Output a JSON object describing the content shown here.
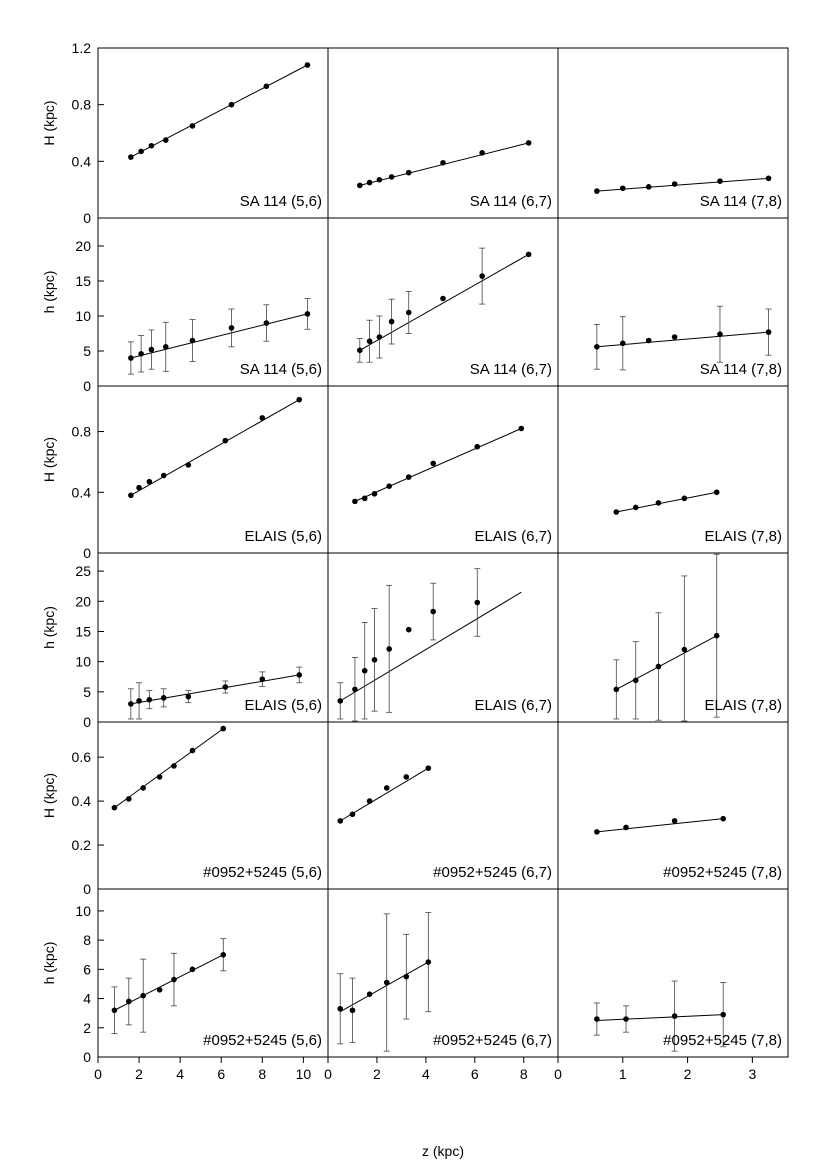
{
  "xlabel": "z (kpc)",
  "chart_data": [
    {
      "type": "scatter",
      "label": "SA 114 (5,6)",
      "ylabel": "H (kpc)",
      "xlim": [
        0,
        11.2
      ],
      "ylim": [
        0,
        1.2
      ],
      "xticks": [],
      "yticks": [
        0,
        0.4,
        0.8,
        1.2
      ],
      "points": [
        [
          1.6,
          0.43
        ],
        [
          2.1,
          0.47
        ],
        [
          2.6,
          0.51
        ],
        [
          3.3,
          0.55
        ],
        [
          4.6,
          0.65
        ],
        [
          6.5,
          0.8
        ],
        [
          8.2,
          0.93
        ],
        [
          10.2,
          1.08
        ]
      ],
      "line": [
        [
          1.6,
          0.43
        ],
        [
          10.2,
          1.08
        ]
      ]
    },
    {
      "type": "scatter",
      "label": "SA 114 (6,7)",
      "ylabel": "",
      "xlim": [
        0,
        9.4
      ],
      "ylim": [
        0,
        1.2
      ],
      "xticks": [],
      "yticks": [],
      "points": [
        [
          1.3,
          0.23
        ],
        [
          1.7,
          0.25
        ],
        [
          2.1,
          0.27
        ],
        [
          2.6,
          0.29
        ],
        [
          3.3,
          0.32
        ],
        [
          4.7,
          0.39
        ],
        [
          6.3,
          0.46
        ],
        [
          8.2,
          0.53
        ]
      ],
      "line": [
        [
          1.3,
          0.23
        ],
        [
          8.2,
          0.53
        ]
      ]
    },
    {
      "type": "scatter",
      "label": "SA 114 (7,8)",
      "ylabel": "",
      "xlim": [
        0,
        3.55
      ],
      "ylim": [
        0,
        1.2
      ],
      "xticks": [],
      "yticks": [],
      "points": [
        [
          0.6,
          0.19
        ],
        [
          1.0,
          0.21
        ],
        [
          1.4,
          0.22
        ],
        [
          1.8,
          0.24
        ],
        [
          2.5,
          0.26
        ],
        [
          3.25,
          0.28
        ]
      ],
      "line": [
        [
          0.6,
          0.19
        ],
        [
          3.25,
          0.28
        ]
      ]
    },
    {
      "type": "scatter",
      "label": "SA 114 (5,6)",
      "ylabel": "h (kpc)",
      "xlim": [
        0,
        11.2
      ],
      "ylim": [
        0,
        24
      ],
      "xticks": [],
      "yticks": [
        0,
        5,
        10,
        15,
        20
      ],
      "points": [
        [
          1.6,
          4.0,
          2.3
        ],
        [
          2.1,
          4.6,
          2.6
        ],
        [
          2.6,
          5.2,
          2.8
        ],
        [
          3.3,
          5.6,
          3.5
        ],
        [
          4.6,
          6.5,
          3.0
        ],
        [
          6.5,
          8.3,
          2.7
        ],
        [
          8.2,
          9.0,
          2.6
        ],
        [
          10.2,
          10.3,
          2.2
        ]
      ],
      "line": [
        [
          1.6,
          4.0
        ],
        [
          10.2,
          10.3
        ]
      ]
    },
    {
      "type": "scatter",
      "label": "SA 114 (6,7)",
      "ylabel": "",
      "xlim": [
        0,
        9.4
      ],
      "ylim": [
        0,
        24
      ],
      "xticks": [],
      "yticks": [],
      "points": [
        [
          1.3,
          5.1,
          1.7
        ],
        [
          1.7,
          6.4,
          3.0
        ],
        [
          2.1,
          7.0,
          3.0
        ],
        [
          2.6,
          9.2,
          3.2
        ],
        [
          3.3,
          10.5,
          3.0
        ],
        [
          4.7,
          12.5,
          null
        ],
        [
          6.3,
          15.7,
          4.0
        ],
        [
          8.2,
          18.8,
          null
        ]
      ],
      "line": [
        [
          1.3,
          5.1
        ],
        [
          8.2,
          18.8
        ]
      ]
    },
    {
      "type": "scatter",
      "label": "SA 114 (7,8)",
      "ylabel": "",
      "xlim": [
        0,
        3.55
      ],
      "ylim": [
        0,
        24
      ],
      "xticks": [],
      "yticks": [],
      "points": [
        [
          0.6,
          5.6,
          3.2
        ],
        [
          1.0,
          6.1,
          3.8
        ],
        [
          1.4,
          6.5,
          null
        ],
        [
          1.8,
          7.0,
          null
        ],
        [
          2.5,
          7.4,
          4.0
        ],
        [
          3.25,
          7.7,
          3.3
        ]
      ],
      "line": [
        [
          0.6,
          5.6
        ],
        [
          3.25,
          7.7
        ]
      ]
    },
    {
      "type": "scatter",
      "label": "ELAIS (5,6)",
      "ylabel": "H (kpc)",
      "xlim": [
        0,
        11.2
      ],
      "ylim": [
        0,
        1.1
      ],
      "xticks": [],
      "yticks": [
        0,
        0.4,
        0.8
      ],
      "points": [
        [
          1.6,
          0.38
        ],
        [
          2.0,
          0.43
        ],
        [
          2.5,
          0.47
        ],
        [
          3.2,
          0.51
        ],
        [
          4.4,
          0.58
        ],
        [
          6.2,
          0.74
        ],
        [
          8.0,
          0.89
        ],
        [
          9.8,
          1.01
        ]
      ],
      "line": [
        [
          1.6,
          0.38
        ],
        [
          9.8,
          1.01
        ]
      ]
    },
    {
      "type": "scatter",
      "label": "ELAIS (6,7)",
      "ylabel": "",
      "xlim": [
        0,
        9.4
      ],
      "ylim": [
        0,
        1.1
      ],
      "xticks": [],
      "yticks": [],
      "points": [
        [
          1.1,
          0.34
        ],
        [
          1.5,
          0.36
        ],
        [
          1.9,
          0.39
        ],
        [
          2.5,
          0.44
        ],
        [
          3.3,
          0.5
        ],
        [
          4.3,
          0.59
        ],
        [
          6.1,
          0.7
        ],
        [
          7.9,
          0.82
        ]
      ],
      "line": [
        [
          1.1,
          0.34
        ],
        [
          7.9,
          0.82
        ]
      ]
    },
    {
      "type": "scatter",
      "label": "ELAIS (7,8)",
      "ylabel": "",
      "xlim": [
        0,
        3.55
      ],
      "ylim": [
        0,
        1.1
      ],
      "xticks": [],
      "yticks": [],
      "points": [
        [
          0.9,
          0.27
        ],
        [
          1.2,
          0.3
        ],
        [
          1.55,
          0.33
        ],
        [
          1.95,
          0.36
        ],
        [
          2.45,
          0.4
        ]
      ],
      "line": [
        [
          0.9,
          0.27
        ],
        [
          2.45,
          0.4
        ]
      ]
    },
    {
      "type": "scatter",
      "label": "ELAIS (5,6)",
      "ylabel": "h (kpc)",
      "xlim": [
        0,
        11.2
      ],
      "ylim": [
        0,
        28
      ],
      "xticks": [],
      "yticks": [
        0,
        5,
        10,
        15,
        20,
        25
      ],
      "points": [
        [
          1.6,
          3.0,
          2.5
        ],
        [
          2.0,
          3.5,
          3.0
        ],
        [
          2.5,
          3.7,
          1.5
        ],
        [
          3.2,
          4.0,
          1.5
        ],
        [
          4.4,
          4.2,
          1.0
        ],
        [
          6.2,
          5.8,
          1.0
        ],
        [
          8.0,
          7.1,
          1.2
        ],
        [
          9.8,
          7.8,
          1.3
        ]
      ],
      "line": [
        [
          1.6,
          3.0
        ],
        [
          9.8,
          7.8
        ]
      ]
    },
    {
      "type": "scatter",
      "label": "ELAIS (6,7)",
      "ylabel": "",
      "xlim": [
        0,
        9.4
      ],
      "ylim": [
        0,
        28
      ],
      "xticks": [],
      "yticks": [],
      "points": [
        [
          0.5,
          3.5,
          3.0
        ],
        [
          1.1,
          5.4,
          5.3
        ],
        [
          1.5,
          8.5,
          8.0
        ],
        [
          1.9,
          10.3,
          8.5
        ],
        [
          2.5,
          12.1,
          10.5
        ],
        [
          3.3,
          15.3,
          null
        ],
        [
          4.3,
          18.3,
          4.7
        ],
        [
          6.1,
          19.8,
          5.6
        ]
      ],
      "line": [
        [
          0.5,
          3.5
        ],
        [
          7.9,
          21.5
        ]
      ]
    },
    {
      "type": "scatter",
      "label": "ELAIS (7,8)",
      "ylabel": "",
      "xlim": [
        0,
        3.55
      ],
      "ylim": [
        0,
        28
      ],
      "xticks": [],
      "yticks": [],
      "points": [
        [
          0.9,
          5.4,
          4.9
        ],
        [
          1.2,
          6.9,
          6.4
        ],
        [
          1.55,
          9.2,
          8.9
        ],
        [
          1.95,
          12.0,
          12.2
        ],
        [
          2.45,
          14.3,
          13.5
        ]
      ],
      "line": [
        [
          0.9,
          5.4
        ],
        [
          2.45,
          14.3
        ]
      ]
    },
    {
      "type": "scatter",
      "label": "#0952+5245 (5,6)",
      "ylabel": "H (kpc)",
      "xlim": [
        0,
        11.2
      ],
      "ylim": [
        0,
        0.76
      ],
      "xticks": [],
      "yticks": [
        0,
        0.2,
        0.4,
        0.6
      ],
      "points": [
        [
          0.8,
          0.37
        ],
        [
          1.5,
          0.41
        ],
        [
          2.2,
          0.46
        ],
        [
          3.0,
          0.51
        ],
        [
          3.7,
          0.56
        ],
        [
          4.6,
          0.63
        ],
        [
          6.1,
          0.73
        ]
      ],
      "line": [
        [
          0.8,
          0.37
        ],
        [
          6.1,
          0.73
        ]
      ]
    },
    {
      "type": "scatter",
      "label": "#0952+5245 (6,7)",
      "ylabel": "",
      "xlim": [
        0,
        9.4
      ],
      "ylim": [
        0,
        0.76
      ],
      "xticks": [],
      "yticks": [],
      "points": [
        [
          0.5,
          0.31
        ],
        [
          1.0,
          0.34
        ],
        [
          1.7,
          0.4
        ],
        [
          2.4,
          0.46
        ],
        [
          3.2,
          0.51
        ],
        [
          4.1,
          0.55
        ]
      ],
      "line": [
        [
          0.5,
          0.31
        ],
        [
          4.1,
          0.55
        ]
      ]
    },
    {
      "type": "scatter",
      "label": "#0952+5245 (7,8)",
      "ylabel": "",
      "xlim": [
        0,
        3.55
      ],
      "ylim": [
        0,
        0.76
      ],
      "xticks": [],
      "yticks": [],
      "points": [
        [
          0.6,
          0.26
        ],
        [
          1.05,
          0.28
        ],
        [
          1.8,
          0.31
        ],
        [
          2.55,
          0.32
        ]
      ],
      "line": [
        [
          0.6,
          0.26
        ],
        [
          2.55,
          0.32
        ]
      ]
    },
    {
      "type": "scatter",
      "label": "#0952+5245 (5,6)",
      "ylabel": "h (kpc)",
      "xlim": [
        0,
        11.2
      ],
      "ylim": [
        0,
        11.5
      ],
      "xticks": [
        0,
        2,
        4,
        6,
        8,
        10
      ],
      "yticks": [
        0,
        2,
        4,
        6,
        8,
        10
      ],
      "points": [
        [
          0.8,
          3.2,
          1.6
        ],
        [
          1.5,
          3.8,
          1.6
        ],
        [
          2.2,
          4.2,
          2.5
        ],
        [
          3.0,
          4.6,
          null
        ],
        [
          3.7,
          5.3,
          1.8
        ],
        [
          4.6,
          6.0,
          null
        ],
        [
          6.1,
          7.0,
          1.1
        ]
      ],
      "line": [
        [
          0.8,
          3.2
        ],
        [
          6.1,
          7.0
        ]
      ]
    },
    {
      "type": "scatter",
      "label": "#0952+5245 (6,7)",
      "ylabel": "",
      "xlim": [
        0,
        9.4
      ],
      "ylim": [
        0,
        11.5
      ],
      "xticks": [
        0,
        2,
        4,
        6,
        8
      ],
      "yticks": [],
      "points": [
        [
          0.5,
          3.3,
          2.4
        ],
        [
          1.0,
          3.2,
          2.2
        ],
        [
          1.7,
          4.3,
          null
        ],
        [
          2.4,
          5.1,
          4.7
        ],
        [
          3.2,
          5.5,
          2.9
        ],
        [
          4.1,
          6.5,
          3.4
        ]
      ],
      "line": [
        [
          0.5,
          3.1
        ],
        [
          4.1,
          6.5
        ]
      ]
    },
    {
      "type": "scatter",
      "label": "#0952+5245 (7,8)",
      "ylabel": "",
      "xlim": [
        0,
        3.55
      ],
      "ylim": [
        0,
        11.5
      ],
      "xticks": [
        0,
        1,
        2,
        3
      ],
      "yticks": [],
      "points": [
        [
          0.6,
          2.6,
          1.1
        ],
        [
          1.05,
          2.6,
          0.9
        ],
        [
          1.8,
          2.8,
          2.4
        ],
        [
          2.55,
          2.9,
          2.2
        ]
      ],
      "line": [
        [
          0.6,
          2.5
        ],
        [
          2.55,
          2.9
        ]
      ]
    }
  ]
}
